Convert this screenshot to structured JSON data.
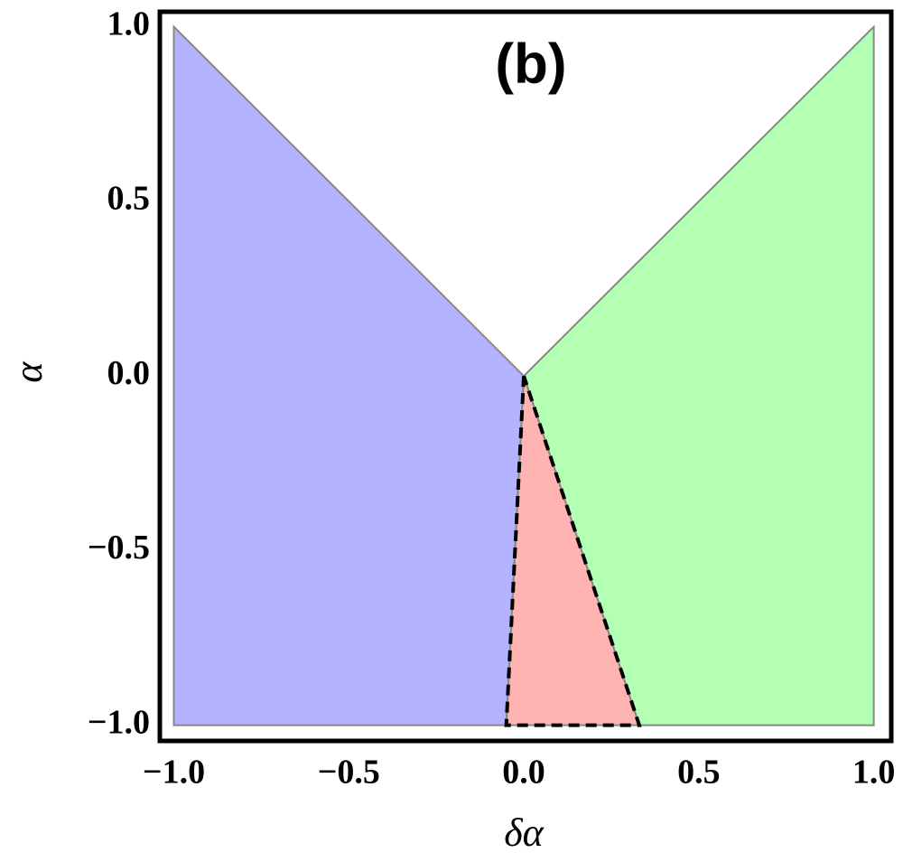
{
  "chart_data": {
    "type": "region",
    "title": "(b)",
    "x_label": "δα",
    "y_label": "α",
    "xlim": [
      -1.04,
      1.05
    ],
    "ylim": [
      -1.045,
      1.043
    ],
    "xticks": [
      {
        "value": -1,
        "label": "−1.0"
      },
      {
        "value": -0.5,
        "label": "−0.5"
      },
      {
        "value": 0,
        "label": "0.0"
      },
      {
        "value": 0.5,
        "label": "0.5"
      },
      {
        "value": 1,
        "label": "1.0"
      }
    ],
    "yticks": [
      {
        "value": -1,
        "label": "−1.0"
      },
      {
        "value": -0.5,
        "label": "−0.5"
      },
      {
        "value": 0,
        "label": "0.0"
      },
      {
        "value": 0.5,
        "label": "0.5"
      },
      {
        "value": 1,
        "label": "1.0"
      }
    ],
    "regions": [
      {
        "color": "#b3b3ff",
        "x": [
          -1,
          0,
          -0.05,
          -1
        ],
        "y": [
          1,
          0,
          -1,
          -1
        ]
      },
      {
        "color": "#b3ffb3",
        "x": [
          0,
          1,
          1,
          0.33
        ],
        "y": [
          0,
          1,
          -1,
          -1
        ]
      },
      {
        "color": "#ffb3b3",
        "x": [
          0,
          -0.05,
          0.33
        ],
        "y": [
          0,
          -1,
          -1
        ]
      }
    ],
    "boundaries": [
      {
        "color": "#000000",
        "dashed": true,
        "x": [
          0,
          -0.05,
          0.33,
          0
        ],
        "y": [
          0,
          -1,
          -1,
          0
        ]
      }
    ]
  }
}
